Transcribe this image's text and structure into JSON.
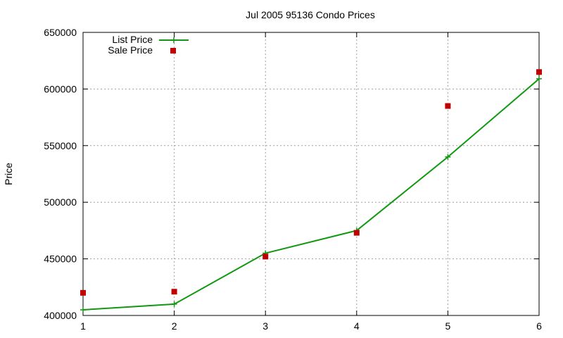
{
  "chart_data": {
    "type": "line",
    "title": "Jul 2005 95136 Condo Prices",
    "xlabel": "",
    "ylabel": "Price",
    "x": [
      1,
      2,
      3,
      4,
      5,
      6
    ],
    "xlim": [
      1,
      6
    ],
    "ylim": [
      400000,
      650000
    ],
    "xticks": [
      "1",
      "2",
      "3",
      "4",
      "5",
      "6"
    ],
    "yticks": [
      "400000",
      "450000",
      "500000",
      "550000",
      "600000",
      "650000"
    ],
    "grid": true,
    "legend_position": "top-left",
    "series": [
      {
        "name": "List Price",
        "style": "line-with-plus-markers",
        "color": "#119911",
        "values": [
          405000,
          410000,
          455000,
          475000,
          540000,
          609000
        ]
      },
      {
        "name": "Sale Price",
        "style": "square-markers",
        "color": "#c00000",
        "values": [
          420000,
          421000,
          452000,
          473000,
          585000,
          615000
        ]
      }
    ]
  }
}
